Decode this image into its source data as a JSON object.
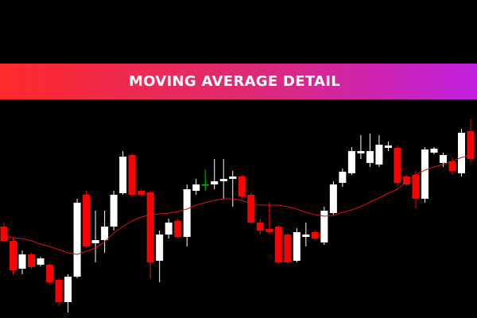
{
  "chart_data": {
    "type": "candlestick",
    "title": "MOVING AVERAGE DETAIL",
    "open": [
      115,
      97,
      62,
      80,
      67,
      67,
      48,
      20,
      52,
      155,
      94,
      98,
      115,
      157,
      205,
      160,
      158,
      72,
      105,
      122,
      102,
      160,
      168,
      168,
      172,
      175,
      178,
      155,
      120,
      112,
      115,
      105,
      72,
      102,
      108,
      95,
      132,
      170,
      182,
      207,
      195,
      193,
      214,
      214,
      178,
      180,
      150,
      208,
      195,
      197,
      182,
      235
    ],
    "high": [
      120,
      102,
      85,
      82,
      77,
      69,
      50,
      55,
      150,
      160,
      135,
      135,
      160,
      210,
      207,
      162,
      160,
      110,
      125,
      125,
      168,
      175,
      187,
      200,
      200,
      185,
      180,
      157,
      125,
      145,
      117,
      107,
      113,
      120,
      110,
      140,
      172,
      188,
      215,
      230,
      232,
      230,
      222,
      217,
      180,
      185,
      215,
      215,
      208,
      202,
      238,
      250
    ],
    "low": [
      95,
      55,
      55,
      62,
      65,
      43,
      15,
      7,
      50,
      88,
      70,
      82,
      110,
      155,
      153,
      153,
      50,
      45,
      100,
      100,
      90,
      155,
      160,
      162,
      150,
      140,
      150,
      118,
      105,
      105,
      68,
      68,
      70,
      90,
      98,
      92,
      130,
      165,
      180,
      200,
      190,
      190,
      210,
      165,
      166,
      138,
      145,
      206,
      190,
      180,
      178,
      195
    ],
    "close": [
      97,
      60,
      80,
      64,
      75,
      45,
      20,
      52,
      145,
      90,
      98,
      115,
      155,
      203,
      155,
      155,
      70,
      105,
      120,
      102,
      162,
      168,
      168,
      172,
      175,
      178,
      153,
      120,
      110,
      108,
      70,
      70,
      108,
      105,
      100,
      135,
      168,
      184,
      210,
      210,
      210,
      218,
      217,
      170,
      168,
      150,
      212,
      213,
      205,
      185,
      233,
      200
    ],
    "up_color": "#ffffff",
    "down_color": "#ff0000",
    "doji_color": "#00c000",
    "moving_average": {
      "color": "#e01010",
      "values": [
        102,
        101,
        100,
        97,
        93,
        90,
        86,
        82,
        80,
        84,
        88,
        96,
        107,
        115,
        122,
        127,
        130,
        131,
        132,
        134,
        137,
        142,
        145,
        148,
        150,
        150,
        148,
        144,
        142,
        142,
        142,
        140,
        137,
        133,
        130,
        128,
        129,
        133,
        136,
        140,
        146,
        151,
        157,
        162,
        172,
        180,
        186,
        190,
        193,
        197,
        202,
        205
      ]
    },
    "ylim": [
      0,
      400
    ]
  }
}
